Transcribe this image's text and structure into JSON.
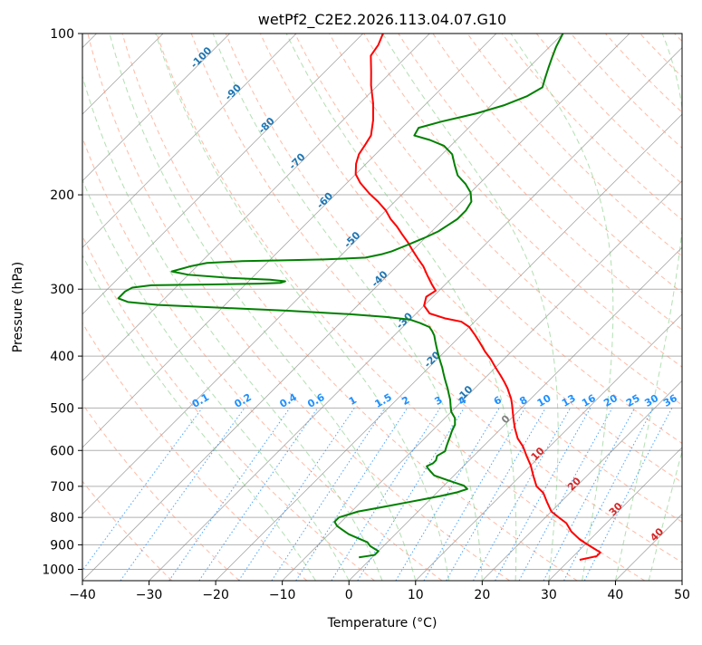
{
  "chart_data": {
    "type": "line",
    "chart_kind": "skew-t log-p",
    "title": "wetPf2_C2E2.2026.113.04.07.G10",
    "xlabel": "Temperature (°C)",
    "ylabel": "Pressure (hPa)",
    "xlim": [
      -40,
      50
    ],
    "ylim": [
      1050,
      100
    ],
    "y_scale": "log",
    "skew_slope": "45deg",
    "grid": true,
    "x_ticks": [
      -40,
      -30,
      -20,
      -10,
      0,
      10,
      20,
      30,
      40,
      50
    ],
    "y_ticks": [
      100,
      200,
      300,
      400,
      500,
      600,
      700,
      800,
      900,
      1000
    ],
    "colors": {
      "temperature": "#ff0000",
      "dewpoint": "#008000",
      "isotherm": "#808080",
      "dry_adiabat": "#ff8c69",
      "moist_adiabat": "#7fc97f",
      "mixing_ratio": "#1e90ff",
      "dry_adiabat_label": "#d62728",
      "moist_adiabat_label": "#1f77b4",
      "mixing_label": "#1e90ff",
      "tan_curve": "#c8a27a"
    },
    "series": [
      {
        "key": "temperature",
        "points": [
          [
            31.5,
            960
          ],
          [
            33.5,
            945
          ],
          [
            33.5,
            930
          ],
          [
            32,
            915
          ],
          [
            30,
            895
          ],
          [
            28.5,
            880
          ],
          [
            26,
            850
          ],
          [
            24,
            820
          ],
          [
            22,
            800
          ],
          [
            20,
            780
          ],
          [
            18,
            750
          ],
          [
            16,
            720
          ],
          [
            14,
            700
          ],
          [
            12,
            670
          ],
          [
            10,
            640
          ],
          [
            8,
            615
          ],
          [
            6,
            590
          ],
          [
            4,
            570
          ],
          [
            2,
            545
          ],
          [
            0.5,
            525
          ],
          [
            -1,
            505
          ],
          [
            -2,
            492
          ],
          [
            -3,
            480
          ],
          [
            -4,
            470
          ],
          [
            -5,
            460
          ],
          [
            -6.5,
            447
          ],
          [
            -8,
            435
          ],
          [
            -10,
            420
          ],
          [
            -12,
            405
          ],
          [
            -14,
            392
          ],
          [
            -16,
            378
          ],
          [
            -18,
            365
          ],
          [
            -20,
            353
          ],
          [
            -22,
            345
          ],
          [
            -25,
            340
          ],
          [
            -28,
            333
          ],
          [
            -30,
            322
          ],
          [
            -31,
            310
          ],
          [
            -30.5,
            302
          ],
          [
            -32,
            294
          ],
          [
            -34,
            283
          ],
          [
            -36,
            272
          ],
          [
            -38,
            263
          ],
          [
            -40,
            254
          ],
          [
            -42,
            245
          ],
          [
            -44,
            237
          ],
          [
            -46,
            229
          ],
          [
            -48,
            222
          ],
          [
            -50,
            214
          ],
          [
            -52.5,
            206
          ],
          [
            -55,
            199
          ],
          [
            -58,
            190
          ],
          [
            -60,
            183
          ],
          [
            -61.5,
            175
          ],
          [
            -62.5,
            168
          ],
          [
            -63,
            161
          ],
          [
            -63.5,
            155
          ],
          [
            -65.5,
            145
          ],
          [
            -68,
            135
          ],
          [
            -71,
            125
          ],
          [
            -73,
            118
          ],
          [
            -75.5,
            110
          ],
          [
            -76,
            105
          ],
          [
            -77,
            100
          ]
        ]
      },
      {
        "key": "dewpoint",
        "points": [
          [
            -2,
            950
          ],
          [
            -1,
            945
          ],
          [
            0,
            940
          ],
          [
            0,
            925
          ],
          [
            -1,
            915
          ],
          [
            -2,
            905
          ],
          [
            -3,
            890
          ],
          [
            -5,
            875
          ],
          [
            -7,
            860
          ],
          [
            -9,
            840
          ],
          [
            -10,
            830
          ],
          [
            -11,
            815
          ],
          [
            -11,
            800
          ],
          [
            -10,
            790
          ],
          [
            -9,
            780
          ],
          [
            -7,
            770
          ],
          [
            -5,
            760
          ],
          [
            -3,
            750
          ],
          [
            -1,
            740
          ],
          [
            1,
            730
          ],
          [
            3,
            718
          ],
          [
            4,
            708
          ],
          [
            3,
            698
          ],
          [
            1,
            688
          ],
          [
            -1,
            678
          ],
          [
            -3,
            668
          ],
          [
            -4,
            658
          ],
          [
            -5,
            648
          ],
          [
            -5.5,
            642
          ],
          [
            -5,
            634
          ],
          [
            -5,
            626
          ],
          [
            -5.5,
            614
          ],
          [
            -5,
            602
          ],
          [
            -5.5,
            590
          ],
          [
            -6,
            577
          ],
          [
            -6.5,
            564
          ],
          [
            -7,
            552
          ],
          [
            -7.5,
            537
          ],
          [
            -8.5,
            522
          ],
          [
            -10,
            508
          ],
          [
            -11,
            495
          ],
          [
            -12,
            482
          ],
          [
            -13,
            471
          ],
          [
            -14,
            460
          ],
          [
            -15,
            450
          ],
          [
            -16,
            440
          ],
          [
            -17,
            430
          ],
          [
            -18,
            420
          ],
          [
            -19,
            411
          ],
          [
            -20,
            402
          ],
          [
            -21,
            393
          ],
          [
            -22,
            384
          ],
          [
            -23,
            375
          ],
          [
            -24,
            366
          ],
          [
            -25,
            359
          ],
          [
            -26,
            353
          ],
          [
            -28,
            347
          ],
          [
            -30,
            342
          ],
          [
            -34,
            338
          ],
          [
            -40,
            334
          ],
          [
            -50,
            329
          ],
          [
            -60,
            325
          ],
          [
            -70,
            321
          ],
          [
            -75,
            317
          ],
          [
            -77,
            312
          ],
          [
            -77,
            307
          ],
          [
            -77,
            303
          ],
          [
            -76.5,
            298
          ],
          [
            -74,
            295
          ],
          [
            -65,
            294
          ],
          [
            -58,
            293
          ],
          [
            -55,
            292
          ],
          [
            -54.5,
            290
          ],
          [
            -57,
            288
          ],
          [
            -63,
            286
          ],
          [
            -70,
            282
          ],
          [
            -73,
            278
          ],
          [
            -71,
            272
          ],
          [
            -69,
            268
          ],
          [
            -64,
            266
          ],
          [
            -58,
            265
          ],
          [
            -52,
            264
          ],
          [
            -46,
            262
          ],
          [
            -44,
            258
          ],
          [
            -43,
            255
          ],
          [
            -42,
            250
          ],
          [
            -41,
            245
          ],
          [
            -40,
            240
          ],
          [
            -39,
            234
          ],
          [
            -38.5,
            228
          ],
          [
            -38,
            222
          ],
          [
            -38,
            214
          ],
          [
            -38.5,
            206
          ],
          [
            -40,
            198
          ],
          [
            -42,
            191
          ],
          [
            -44.5,
            184
          ],
          [
            -46.5,
            176
          ],
          [
            -48.5,
            168
          ],
          [
            -51,
            162
          ],
          [
            -54,
            158
          ],
          [
            -57,
            155
          ],
          [
            -57.5,
            150
          ],
          [
            -55,
            146
          ],
          [
            -51,
            141
          ],
          [
            -48,
            136
          ],
          [
            -46,
            131
          ],
          [
            -45,
            126
          ],
          [
            -46,
            121
          ],
          [
            -47,
            116
          ],
          [
            -48,
            111
          ],
          [
            -49,
            106
          ],
          [
            -50,
            100
          ]
        ]
      }
    ],
    "dry_adiabat_labels": [
      "-100",
      "-90",
      "-80",
      "-70",
      "-60",
      "-50",
      "-40",
      "-30",
      "-20",
      "-10",
      "0",
      "10",
      "20",
      "30",
      "40"
    ],
    "dry_adiabat_label_values": [
      -100,
      -90,
      -80,
      -70,
      -60,
      -50,
      -40,
      -30,
      -20,
      -10,
      0,
      10,
      20,
      30,
      40
    ],
    "mixing_ratio_labels": [
      "0.1",
      "0.2",
      "0.4",
      "0.6",
      "1",
      "1.5",
      "2",
      "3",
      "4",
      "6",
      "8",
      "10",
      "13",
      "16",
      "20",
      "25",
      "30",
      "36"
    ],
    "mixing_ratio_values": [
      0.1,
      0.2,
      0.4,
      0.6,
      1,
      1.5,
      2,
      3,
      4,
      6,
      8,
      10,
      13,
      16,
      20,
      25,
      30,
      36
    ],
    "mixing_ratio_top_pressure": 500,
    "dry_adiabat_thetas_c": [
      -30,
      -20,
      -10,
      0,
      10,
      20,
      30,
      40,
      50,
      60,
      70,
      80,
      90,
      100,
      110,
      120,
      130,
      140,
      150,
      160,
      170,
      180,
      190,
      200,
      210,
      220,
      230,
      240,
      250,
      260,
      270
    ],
    "moist_adiabat_start_temps_c": [
      -5,
      0,
      5,
      10,
      15,
      20,
      25,
      30,
      35,
      40,
      45
    ]
  }
}
